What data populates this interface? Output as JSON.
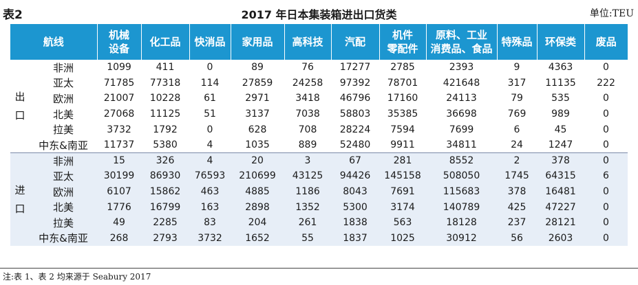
{
  "caption": {
    "table_no": "表2",
    "title": "2017 年日本集装箱进出口货类",
    "unit": "单位:TEU"
  },
  "header": {
    "route": "航线",
    "columns": [
      [
        "机械",
        "设备"
      ],
      [
        "化工品"
      ],
      [
        "快消品"
      ],
      [
        "家用品"
      ],
      [
        "高科技"
      ],
      [
        "汽配"
      ],
      [
        "机件",
        "零配件"
      ],
      [
        "原料、工业",
        "消费品、食品"
      ],
      [
        "特殊品"
      ],
      [
        "环保类"
      ],
      [
        "废品"
      ]
    ]
  },
  "groups": [
    {
      "label": [
        "出",
        "口"
      ],
      "rows": [
        {
          "route": "非洲",
          "values": [
            "1099",
            "411",
            "0",
            "89",
            "76",
            "17277",
            "2785",
            "2393",
            "9",
            "4363",
            "0"
          ]
        },
        {
          "route": "亚太",
          "values": [
            "71785",
            "77318",
            "114",
            "27859",
            "24258",
            "97392",
            "78701",
            "421648",
            "317",
            "11135",
            "222"
          ]
        },
        {
          "route": "欧洲",
          "values": [
            "21007",
            "10228",
            "61",
            "2971",
            "3418",
            "46796",
            "17160",
            "24113",
            "79",
            "535",
            "0"
          ]
        },
        {
          "route": "北美",
          "values": [
            "27068",
            "11125",
            "51",
            "3137",
            "7038",
            "58803",
            "35385",
            "36698",
            "769",
            "989",
            "0"
          ]
        },
        {
          "route": "拉美",
          "values": [
            "3732",
            "1792",
            "0",
            "628",
            "708",
            "28224",
            "7594",
            "7699",
            "6",
            "45",
            "0"
          ]
        },
        {
          "route": "中东&南亚",
          "values": [
            "11737",
            "5380",
            "4",
            "1035",
            "889",
            "52480",
            "9911",
            "34811",
            "24",
            "1247",
            "0"
          ]
        }
      ]
    },
    {
      "label": [
        "进",
        "口"
      ],
      "rows": [
        {
          "route": "非洲",
          "values": [
            "15",
            "326",
            "4",
            "20",
            "3",
            "67",
            "281",
            "8552",
            "2",
            "378",
            "0"
          ]
        },
        {
          "route": "亚太",
          "values": [
            "30199",
            "86930",
            "76593",
            "210699",
            "43125",
            "94426",
            "145158",
            "508050",
            "1745",
            "64315",
            "6"
          ]
        },
        {
          "route": "欧洲",
          "values": [
            "6107",
            "15862",
            "463",
            "4885",
            "1186",
            "8043",
            "7691",
            "115683",
            "378",
            "16481",
            "0"
          ]
        },
        {
          "route": "北美",
          "values": [
            "1776",
            "16799",
            "163",
            "2898",
            "1352",
            "5300",
            "3174",
            "140789",
            "425",
            "47227",
            "0"
          ]
        },
        {
          "route": "拉美",
          "values": [
            "49",
            "2285",
            "83",
            "204",
            "261",
            "1838",
            "563",
            "18128",
            "237",
            "28121",
            "0"
          ]
        },
        {
          "route": "中东&南亚",
          "values": [
            "268",
            "2793",
            "3732",
            "1652",
            "55",
            "1837",
            "1025",
            "30912",
            "56",
            "2603",
            "0"
          ]
        }
      ]
    }
  ],
  "footnote": "注:表 1、表 2 均来源于 Seabury 2017",
  "colors": {
    "header_bg": "#1c96d0",
    "import_bg": "#e7eef7"
  }
}
